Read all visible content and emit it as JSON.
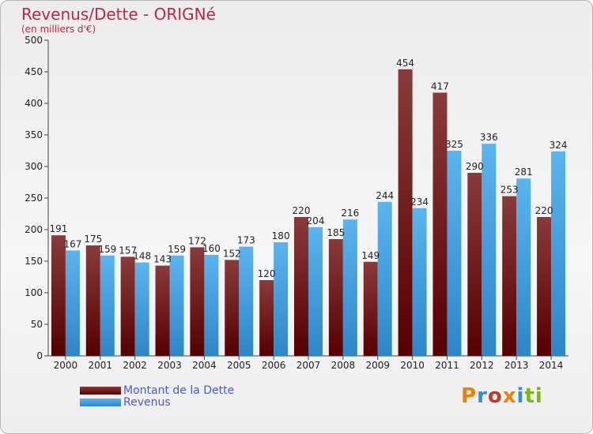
{
  "header": {
    "title": "Revenus/Dette - ORIGNé",
    "subtitle": "(en milliers d'€)"
  },
  "legend": {
    "items": [
      {
        "label": "Montant de la Dette",
        "color": "#6b1414"
      },
      {
        "label": "Revenus",
        "color": "#4aa3e0"
      }
    ]
  },
  "logo": {
    "text": "Proxiti"
  },
  "colors": {
    "dette_top": "#8a3a3a",
    "dette_bottom": "#560000",
    "revenus_top": "#5ab4ee",
    "revenus_bottom": "#2e86c8",
    "title": "#b5274b",
    "logo_letters": [
      "#e8820c",
      "#2f8fd8",
      "#c0392b",
      "#e8820c",
      "#2f8fd8",
      "#7cb518",
      "#7cb518"
    ]
  },
  "chart_data": {
    "type": "bar",
    "categories": [
      "2000",
      "2001",
      "2002",
      "2003",
      "2004",
      "2005",
      "2006",
      "2007",
      "2008",
      "2009",
      "2010",
      "2011",
      "2012",
      "2013",
      "2014"
    ],
    "series": [
      {
        "name": "Montant de la Dette",
        "values": [
          191,
          175,
          157,
          143,
          172,
          152,
          120,
          220,
          185,
          149,
          454,
          417,
          290,
          253,
          220
        ]
      },
      {
        "name": "Revenus",
        "values": [
          167,
          159,
          148,
          159,
          160,
          173,
          180,
          204,
          216,
          244,
          234,
          325,
          336,
          281,
          324
        ]
      }
    ],
    "title": "Revenus/Dette - ORIGNé",
    "subtitle": "(en milliers d'€)",
    "ylim": [
      0,
      500
    ],
    "yticks": [
      0,
      50,
      100,
      150,
      200,
      250,
      300,
      350,
      400,
      450,
      500
    ],
    "grid": false,
    "legend_position": "bottom-left"
  }
}
